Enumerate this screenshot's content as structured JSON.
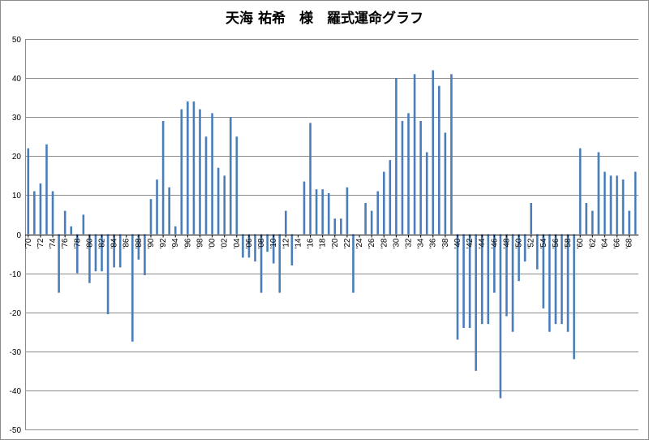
{
  "chart_data": {
    "type": "bar",
    "title": "天海 祐希　様　羅式運命グラフ",
    "xlabel": "",
    "ylabel": "",
    "ylim": [
      -50,
      50
    ],
    "yticks": [
      50,
      40,
      30,
      20,
      10,
      0,
      -10,
      -20,
      -30,
      -40,
      -50
    ],
    "grid": true,
    "bar_color": "#4a7ebb",
    "grid_color": "#8c8c8c",
    "x_start": "1970",
    "x_end": "2069",
    "xtick_labels": [
      "'70",
      "'72",
      "'74",
      "'76",
      "'78",
      "'80",
      "'82",
      "'84",
      "'86",
      "'88",
      "'90",
      "'92",
      "'94",
      "'96",
      "'98",
      "'00",
      "'02",
      "'04",
      "'06",
      "'08",
      "'10",
      "'12",
      "'14",
      "'16",
      "'18",
      "'20",
      "'22",
      "'24",
      "'26",
      "'28",
      "'30",
      "'32",
      "'34",
      "'36",
      "'38",
      "'40",
      "'42",
      "'44",
      "'46",
      "'48",
      "'50",
      "'52",
      "'54",
      "'56",
      "'58",
      "'60",
      "'62",
      "'64",
      "'66",
      "'68"
    ],
    "values": [
      22,
      11,
      13,
      23,
      11,
      -15,
      6,
      2,
      -10,
      5,
      -12.5,
      -9.5,
      -9.5,
      -20.5,
      -8.5,
      -8.5,
      0,
      -27.5,
      -6.5,
      -10.5,
      9,
      14,
      29,
      12,
      2,
      32,
      34,
      34,
      32,
      25,
      31,
      17,
      15,
      30,
      25,
      -6,
      -6,
      -7,
      -15,
      -4.5,
      -7.5,
      -15,
      6,
      -8,
      0,
      13.5,
      28.5,
      11.5,
      11.5,
      10.5,
      4,
      4,
      12,
      -15,
      0,
      8,
      6,
      11,
      16,
      19,
      40,
      29,
      31,
      41,
      29,
      21,
      42,
      38,
      26,
      41,
      -27,
      -24,
      -24,
      -35,
      -23,
      -23,
      -15,
      -42,
      -21,
      -25,
      -12,
      -7,
      8,
      -9,
      -19,
      -25,
      -23,
      -23,
      -25,
      -32,
      22,
      8,
      6,
      21,
      16,
      15,
      15,
      14,
      6,
      16
    ]
  }
}
